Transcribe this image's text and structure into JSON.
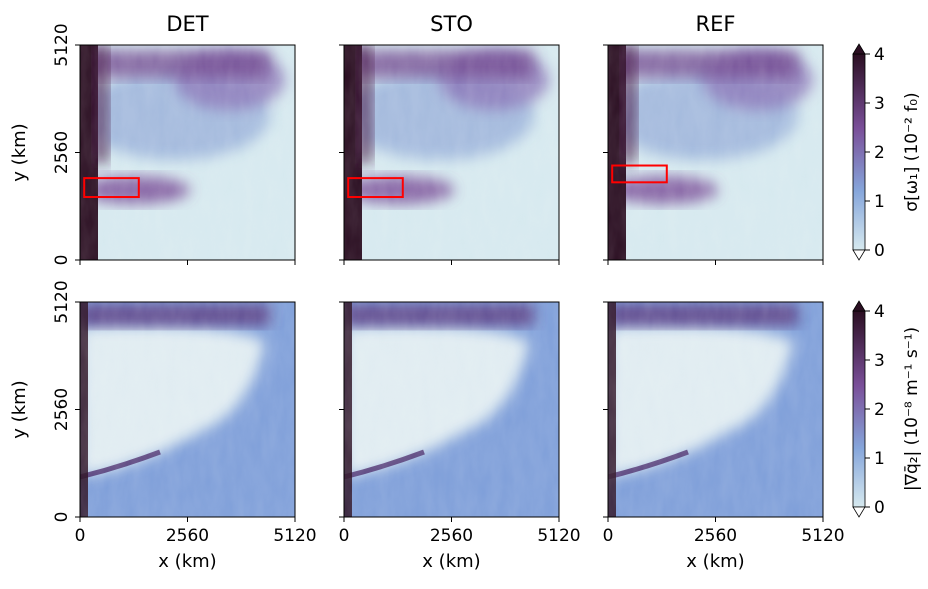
{
  "chart_data": [
    {
      "type": "heatmap",
      "title": "DET",
      "xlabel": "",
      "ylabel": "y (km)",
      "xlim": [
        0,
        5120
      ],
      "ylim": [
        0,
        5120
      ],
      "xticks": [
        "0",
        "2560",
        "5120"
      ],
      "yticks": [
        "0",
        "2560",
        "5120"
      ],
      "colormap": "dense",
      "highlight_box": {
        "x": [
          100,
          1400
        ],
        "y": [
          1500,
          1950
        ],
        "color": "#ff0000"
      }
    },
    {
      "type": "heatmap",
      "title": "STO",
      "xlabel": "",
      "ylabel": "",
      "xlim": [
        0,
        5120
      ],
      "ylim": [
        0,
        5120
      ],
      "xticks": [
        "0",
        "2560",
        "5120"
      ],
      "yticks": [
        "0",
        "2560",
        "5120"
      ],
      "colormap": "dense",
      "highlight_box": {
        "x": [
          100,
          1400
        ],
        "y": [
          1500,
          1950
        ],
        "color": "#ff0000"
      }
    },
    {
      "type": "heatmap",
      "title": "REF",
      "xlabel": "",
      "ylabel": "",
      "xlim": [
        0,
        5120
      ],
      "ylim": [
        0,
        5120
      ],
      "xticks": [
        "0",
        "2560",
        "5120"
      ],
      "yticks": [
        "0",
        "2560",
        "5120"
      ],
      "colormap": "dense",
      "highlight_box": {
        "x": [
          100,
          1400
        ],
        "y": [
          1850,
          2250
        ],
        "color": "#ff0000"
      }
    },
    {
      "type": "heatmap",
      "title": "",
      "xlabel": "x (km)",
      "ylabel": "y (km)",
      "xlim": [
        0,
        5120
      ],
      "ylim": [
        0,
        5120
      ],
      "xticks": [
        "0",
        "2560",
        "5120"
      ],
      "yticks": [
        "0",
        "2560",
        "5120"
      ],
      "colormap": "dense"
    },
    {
      "type": "heatmap",
      "title": "",
      "xlabel": "x (km)",
      "ylabel": "",
      "xlim": [
        0,
        5120
      ],
      "ylim": [
        0,
        5120
      ],
      "xticks": [
        "0",
        "2560",
        "5120"
      ],
      "yticks": [
        "0",
        "2560",
        "5120"
      ],
      "colormap": "dense"
    },
    {
      "type": "heatmap",
      "title": "",
      "xlabel": "x (km)",
      "ylabel": "",
      "xlim": [
        0,
        5120
      ],
      "ylim": [
        0,
        5120
      ],
      "xticks": [
        "0",
        "2560",
        "5120"
      ],
      "yticks": [
        "0",
        "2560",
        "5120"
      ],
      "colormap": "dense"
    }
  ],
  "colorbars": [
    {
      "label": "σ[ω₁] (10⁻² f₀)",
      "range": [
        0,
        4
      ],
      "ticks": [
        "0",
        "1",
        "2",
        "3",
        "4"
      ],
      "extend": "both"
    },
    {
      "label": "|∇q̄₂| (10⁻⁸ m⁻¹ s⁻¹)",
      "range": [
        0,
        4
      ],
      "ticks": [
        "0",
        "1",
        "2",
        "3",
        "4"
      ],
      "extend": "both"
    }
  ],
  "colors": {
    "dark": "#2b0f22",
    "purple": "#7a4f99",
    "blue": "#86a6db",
    "light": "#d6e9ef",
    "box": "#ff0000"
  }
}
